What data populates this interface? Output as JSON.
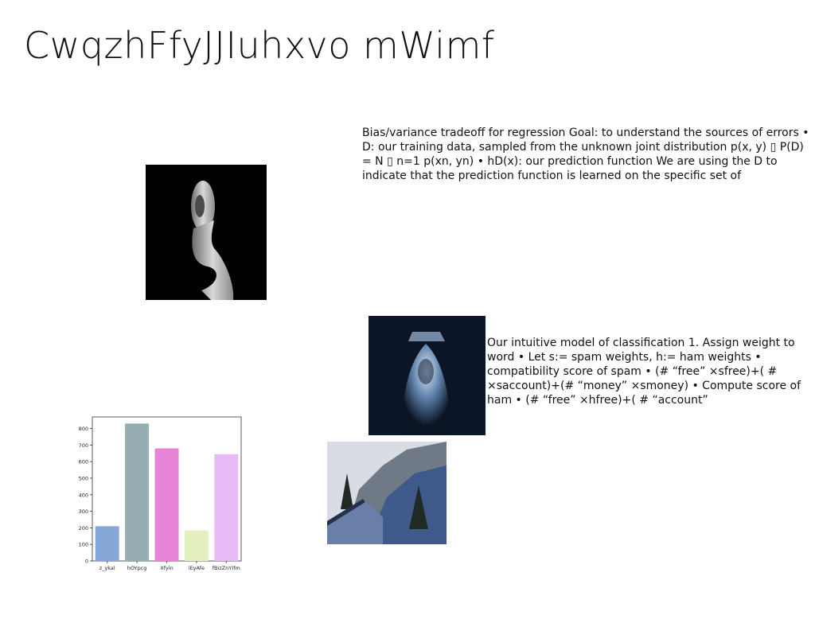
{
  "page": {
    "title": "CwqzhFfyJJIuhxvo mWimf",
    "text_block_1": "Bias/variance tradeoff for regression Goal: to understand the sources of errors • D: our training data, sampled from the unknown joint distribution p(x, y) ▯ P(D) = N ▯ n=1 p(xn, yn) • hD(x): our prediction function We are using the D to indicate that the prediction function is learned on the specific set of",
    "text_block_2": "Our intuitive model of classification 1. Assign weight to word • Let s:= spam weights, h:= ham weights • compatibility score of spam • (# “free” ×sfree)+( # ×saccount)+(# “money” ×smoney) • Compute score of ham • (# “free” ×hfree)+( # “account”"
  },
  "images": [
    {
      "name": "sculpture-photo",
      "description_icon": "image-icon"
    },
    {
      "name": "ghost-photo",
      "description_icon": "image-icon"
    },
    {
      "name": "mountain-photo",
      "description_icon": "image-icon"
    }
  ],
  "chart_data": {
    "type": "bar",
    "categories": [
      "z_ykal",
      "hOYpcg",
      "Xfyin",
      "iEyAfe",
      "fBizZnYIfm"
    ],
    "values": [
      210,
      830,
      680,
      185,
      645
    ],
    "colors": [
      "#86a8d8",
      "#96aeb2",
      "#e884d8",
      "#e3f1c0",
      "#e6baf4"
    ],
    "ylim": [
      0,
      870
    ],
    "yticks": [
      0,
      100,
      200,
      300,
      400,
      500,
      600,
      700,
      800
    ],
    "grid": false,
    "title": "",
    "xlabel": "",
    "ylabel": ""
  }
}
